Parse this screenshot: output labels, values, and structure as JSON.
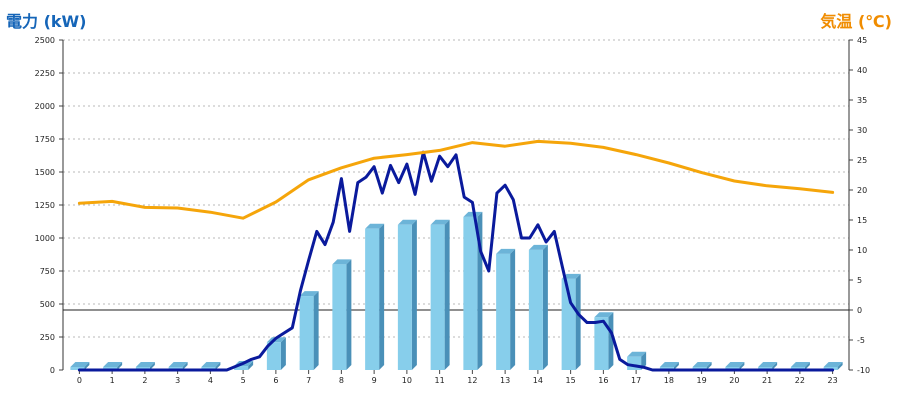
{
  "chart_data": {
    "type": "bar+line",
    "left_axis_title": "電力 (kW)",
    "right_axis_title": "気温 (℃)",
    "left_axis": {
      "min": 0,
      "max": 2500,
      "ticks": [
        "0",
        "250",
        "500",
        "750",
        "1000",
        "1250",
        "1500",
        "1750",
        "2000",
        "2250",
        "2500"
      ]
    },
    "right_axis": {
      "min": -10,
      "max": 45,
      "ticks": [
        "-10",
        "-5",
        "0",
        "5",
        "10",
        "15",
        "20",
        "25",
        "30",
        "35",
        "40",
        "45"
      ]
    },
    "categories": [
      "0",
      "1",
      "2",
      "3",
      "4",
      "5",
      "6",
      "7",
      "8",
      "9",
      "10",
      "11",
      "12",
      "13",
      "14",
      "15",
      "16",
      "17",
      "18",
      "19",
      "20",
      "21",
      "22",
      "23"
    ],
    "grid": "horizontal dotted",
    "reference_line": {
      "axis": "right",
      "value": 0
    },
    "colors": {
      "bar": "#87ceeb",
      "bar_side": "#4a90b8",
      "power_line": "#0a1a9c",
      "temp_line": "#f5a50a",
      "left_title": "#1565b8",
      "right_title": "#f08c00"
    },
    "series": [
      {
        "kind": "bar",
        "axis": "left",
        "unit": "kW",
        "values": [
          0,
          0,
          0,
          0,
          0,
          30,
          210,
          560,
          800,
          1070,
          1100,
          1100,
          1160,
          880,
          910,
          690,
          400,
          100,
          0,
          0,
          0,
          0,
          0,
          0
        ]
      },
      {
        "kind": "line",
        "axis": "left",
        "unit": "kW",
        "x": [
          0,
          1,
          2,
          3,
          4,
          4.5,
          5,
          5.25,
          5.5,
          5.75,
          6,
          6.25,
          6.5,
          6.75,
          7,
          7.25,
          7.5,
          7.75,
          8,
          8.25,
          8.5,
          8.75,
          9,
          9.25,
          9.5,
          9.75,
          10,
          10.25,
          10.5,
          10.75,
          11,
          11.25,
          11.5,
          11.75,
          12,
          12.25,
          12.5,
          12.75,
          13,
          13.25,
          13.5,
          13.75,
          14,
          14.25,
          14.5,
          14.75,
          15,
          15.25,
          15.5,
          15.75,
          16,
          16.25,
          16.5,
          16.75,
          17,
          17.25,
          17.5,
          17.75,
          18,
          19,
          20,
          21,
          22,
          23
        ],
        "values": [
          0,
          0,
          0,
          0,
          0,
          0,
          50,
          80,
          100,
          180,
          240,
          280,
          320,
          600,
          830,
          1050,
          950,
          1120,
          1450,
          1050,
          1420,
          1460,
          1540,
          1340,
          1550,
          1420,
          1560,
          1330,
          1650,
          1430,
          1620,
          1540,
          1630,
          1310,
          1270,
          900,
          750,
          1340,
          1400,
          1290,
          1000,
          1000,
          1100,
          970,
          1050,
          780,
          510,
          420,
          360,
          360,
          370,
          280,
          80,
          40,
          30,
          20,
          0,
          0,
          0,
          0,
          0,
          0,
          0,
          0
        ]
      },
      {
        "kind": "line",
        "axis": "right",
        "unit": "℃",
        "x": [
          0,
          1,
          2,
          3,
          4,
          5,
          6,
          7,
          8,
          9,
          10,
          11,
          12,
          13,
          14,
          15,
          16,
          17,
          18,
          19,
          20,
          21,
          22,
          23
        ],
        "values": [
          17.8,
          18.1,
          17.1,
          17.0,
          16.3,
          15.3,
          18.0,
          21.7,
          23.7,
          25.3,
          25.9,
          26.6,
          27.9,
          27.3,
          28.1,
          27.8,
          27.1,
          25.9,
          24.5,
          22.9,
          21.5,
          20.7,
          20.2,
          19.6
        ]
      }
    ]
  }
}
